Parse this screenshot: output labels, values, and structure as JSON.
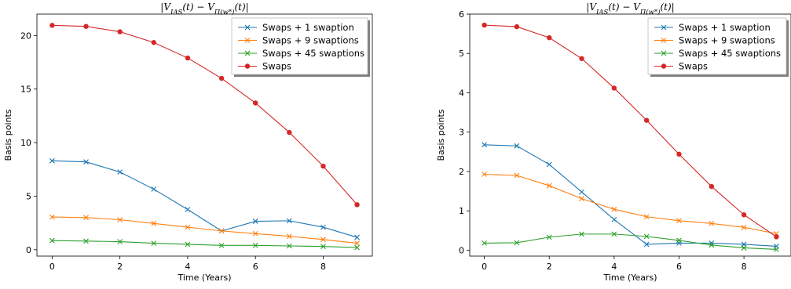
{
  "chart_data": [
    {
      "type": "line",
      "title": "|V_IAS(t) − V_Π(w*)(t)|",
      "title_parts": {
        "lhs": "|V",
        "lhs_sub": "IAS",
        "mid": "(t) − V",
        "rhs_sub": "Π(w*)",
        "rhs": "(t)|"
      },
      "xlabel": "Time (Years)",
      "ylabel": "Basis points",
      "xlim": [
        -0.45,
        9.45
      ],
      "ylim": [
        -0.6,
        22.0
      ],
      "xticks": [
        0,
        2,
        4,
        6,
        8
      ],
      "yticks": [
        0,
        5,
        10,
        15,
        20
      ],
      "grid": false,
      "legend_position": "top-right",
      "x": [
        0,
        1,
        2,
        3,
        4,
        5,
        6,
        7,
        8,
        9
      ],
      "series": [
        {
          "name": "Swaps + 1 swaption",
          "color": "#1f77b4",
          "marker": "x",
          "values": [
            8.3,
            8.2,
            7.25,
            5.65,
            3.75,
            1.75,
            2.65,
            2.7,
            2.1,
            1.15
          ]
        },
        {
          "name": "Swaps + 9 swaptions",
          "color": "#ff7f0e",
          "marker": "x",
          "values": [
            3.05,
            3.0,
            2.8,
            2.45,
            2.1,
            1.75,
            1.5,
            1.25,
            0.95,
            0.6
          ]
        },
        {
          "name": "Swaps + 45 swaptions",
          "color": "#2ca02c",
          "marker": "x",
          "values": [
            0.85,
            0.8,
            0.75,
            0.6,
            0.5,
            0.4,
            0.4,
            0.35,
            0.3,
            0.2
          ]
        },
        {
          "name": "Swaps",
          "color": "#d62728",
          "marker": "o",
          "values": [
            20.95,
            20.85,
            20.35,
            19.35,
            17.9,
            16.0,
            13.7,
            10.95,
            7.8,
            4.2
          ]
        }
      ]
    },
    {
      "type": "line",
      "title": "|V_IAS(t) − V_Π(w*)(t)|",
      "title_parts": {
        "lhs": "|V",
        "lhs_sub": "IAS",
        "mid": "(t) − V",
        "rhs_sub": "Π(w*)",
        "rhs": "(t)|"
      },
      "xlabel": "Time (Years)",
      "ylabel": "Basis points",
      "xlim": [
        -0.45,
        9.45
      ],
      "ylim": [
        -0.15,
        6.0
      ],
      "xticks": [
        0,
        2,
        4,
        6,
        8
      ],
      "yticks": [
        0,
        1,
        2,
        3,
        4,
        5,
        6
      ],
      "grid": false,
      "legend_position": "top-right",
      "x": [
        0,
        1,
        2,
        3,
        4,
        5,
        6,
        7,
        8,
        9
      ],
      "series": [
        {
          "name": "Swaps + 1 swaption",
          "color": "#1f77b4",
          "marker": "x",
          "values": [
            2.68,
            2.65,
            2.18,
            1.48,
            0.78,
            0.15,
            0.18,
            0.18,
            0.15,
            0.1
          ]
        },
        {
          "name": "Swaps + 9 swaptions",
          "color": "#ff7f0e",
          "marker": "x",
          "values": [
            1.93,
            1.9,
            1.64,
            1.31,
            1.04,
            0.85,
            0.75,
            0.68,
            0.58,
            0.42
          ]
        },
        {
          "name": "Swaps + 45 swaptions",
          "color": "#2ca02c",
          "marker": "x",
          "values": [
            0.18,
            0.19,
            0.33,
            0.41,
            0.41,
            0.35,
            0.25,
            0.13,
            0.06,
            0.02
          ]
        },
        {
          "name": "Swaps",
          "color": "#d62728",
          "marker": "o",
          "values": [
            5.72,
            5.68,
            5.4,
            4.87,
            4.12,
            3.3,
            2.44,
            1.62,
            0.9,
            0.34
          ]
        }
      ]
    }
  ]
}
